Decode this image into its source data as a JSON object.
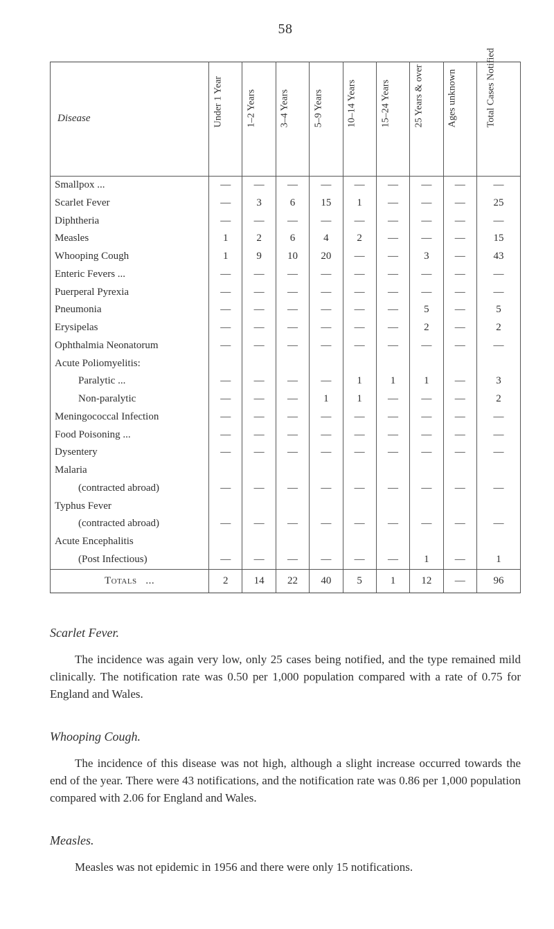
{
  "page_number": "58",
  "colors": {
    "text": "#2e2e2e",
    "rule": "#555555",
    "background": "#ffffff"
  },
  "table": {
    "type": "table",
    "disease_header": "Disease",
    "columns": [
      "Under 1 Year",
      "1–2 Years",
      "3–4 Years",
      "5–9 Years",
      "10–14 Years",
      "15–24 Years",
      "25 Years & over",
      "Ages unknown",
      "Total Cases Notified"
    ],
    "rows": [
      {
        "label": "Smallpox ...",
        "cells": [
          "—",
          "—",
          "—",
          "—",
          "—",
          "—",
          "—",
          "—",
          "—"
        ]
      },
      {
        "label": "Scarlet Fever",
        "cells": [
          "—",
          "3",
          "6",
          "15",
          "1",
          "—",
          "—",
          "—",
          "25"
        ]
      },
      {
        "label": "Diphtheria",
        "cells": [
          "—",
          "—",
          "—",
          "—",
          "—",
          "—",
          "—",
          "—",
          "—"
        ]
      },
      {
        "label": "Measles",
        "cells": [
          "1",
          "2",
          "6",
          "4",
          "2",
          "—",
          "—",
          "—",
          "15"
        ]
      },
      {
        "label": "Whooping Cough",
        "cells": [
          "1",
          "9",
          "10",
          "20",
          "—",
          "—",
          "3",
          "—",
          "43"
        ]
      },
      {
        "label": "Enteric Fevers ...",
        "cells": [
          "—",
          "—",
          "—",
          "—",
          "—",
          "—",
          "—",
          "—",
          "—"
        ]
      },
      {
        "label": "Puerperal Pyrexia",
        "cells": [
          "—",
          "—",
          "—",
          "—",
          "—",
          "—",
          "—",
          "—",
          "—"
        ]
      },
      {
        "label": "Pneumonia",
        "cells": [
          "—",
          "—",
          "—",
          "—",
          "—",
          "—",
          "5",
          "—",
          "5"
        ]
      },
      {
        "label": "Erysipelas",
        "cells": [
          "—",
          "—",
          "—",
          "—",
          "—",
          "—",
          "2",
          "—",
          "2"
        ]
      },
      {
        "label": "Ophthalmia Neonatorum",
        "cells": [
          "—",
          "—",
          "—",
          "—",
          "—",
          "—",
          "—",
          "—",
          "—"
        ]
      },
      {
        "label": "Acute Poliomyelitis:",
        "cells": [
          "",
          "",
          "",
          "",
          "",
          "",
          "",
          "",
          ""
        ]
      },
      {
        "label": "Paralytic ...",
        "indent": true,
        "cells": [
          "—",
          "—",
          "—",
          "—",
          "1",
          "1",
          "1",
          "—",
          "3"
        ]
      },
      {
        "label": "Non-paralytic",
        "indent": true,
        "cells": [
          "—",
          "—",
          "—",
          "1",
          "1",
          "—",
          "—",
          "—",
          "2"
        ]
      },
      {
        "label": "Meningococcal Infection",
        "cells": [
          "—",
          "—",
          "—",
          "—",
          "—",
          "—",
          "—",
          "—",
          "—"
        ]
      },
      {
        "label": "Food Poisoning ...",
        "cells": [
          "—",
          "—",
          "—",
          "—",
          "—",
          "—",
          "—",
          "—",
          "—"
        ]
      },
      {
        "label": "Dysentery",
        "cells": [
          "—",
          "—",
          "—",
          "—",
          "—",
          "—",
          "—",
          "—",
          "—"
        ]
      },
      {
        "label": "Malaria",
        "cells": [
          "",
          "",
          "",
          "",
          "",
          "",
          "",
          "",
          ""
        ]
      },
      {
        "label": "(contracted abroad)",
        "indent": true,
        "cells": [
          "—",
          "—",
          "—",
          "—",
          "—",
          "—",
          "—",
          "—",
          "—"
        ]
      },
      {
        "label": "Typhus Fever",
        "cells": [
          "",
          "",
          "",
          "",
          "",
          "",
          "",
          "",
          ""
        ]
      },
      {
        "label": "(contracted abroad)",
        "indent": true,
        "cells": [
          "—",
          "—",
          "—",
          "—",
          "—",
          "—",
          "—",
          "—",
          "—"
        ]
      },
      {
        "label": "Acute Encephalitis",
        "cells": [
          "",
          "",
          "",
          "",
          "",
          "",
          "",
          "",
          ""
        ]
      },
      {
        "label": "(Post Infectious)",
        "indent": true,
        "cells": [
          "—",
          "—",
          "—",
          "—",
          "—",
          "—",
          "1",
          "—",
          "1"
        ]
      }
    ],
    "totals": {
      "label": "Totals",
      "cells": [
        "2",
        "14",
        "22",
        "40",
        "5",
        "1",
        "12",
        "—",
        "96"
      ]
    }
  },
  "sections": [
    {
      "heading": "Scarlet Fever.",
      "body": "The incidence was again very low, only 25 cases being notified, and the type remained mild clinically. The notification rate was 0.50 per 1,000 population compared with a rate of 0.75 for England and Wales."
    },
    {
      "heading": "Whooping Cough.",
      "body": "The incidence of this disease was not high, although a slight increase occurred towards the end of the year. There were 43 notifications, and the notification rate was 0.86 per 1,000 population compared with 2.06 for England and Wales."
    },
    {
      "heading": "Measles.",
      "body": "Measles was not epidemic in 1956 and there were only 15 notifications."
    }
  ]
}
